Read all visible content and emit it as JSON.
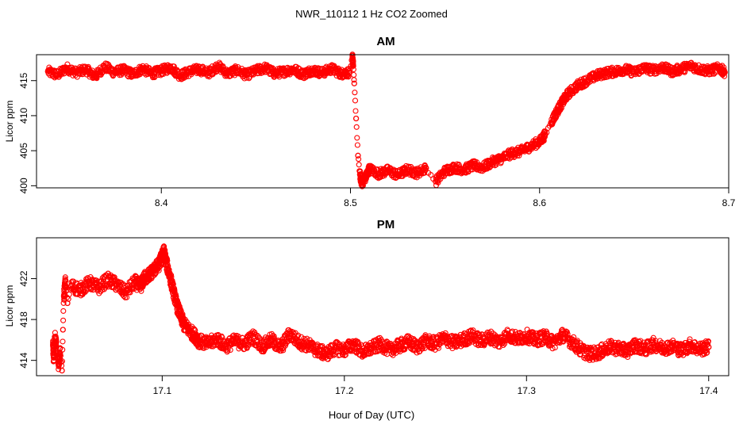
{
  "figure": {
    "suptitle": "NWR_110112  1 Hz CO2 Zoomed",
    "xlabel": "Hour of Day (UTC)"
  },
  "colors": {
    "points": "#ff0000",
    "frame": "#000000",
    "background": "#ffffff"
  },
  "chart_data": [
    {
      "type": "scatter",
      "title": "AM",
      "xlabel": "",
      "ylabel": "Licor ppm",
      "xlim": [
        8.334,
        8.7
      ],
      "ylim": [
        399.7,
        418.7
      ],
      "xticks": [
        8.4,
        8.5,
        8.6,
        8.7
      ],
      "xtick_labels": [
        "8.4",
        "8.5",
        "8.6",
        "8.7"
      ],
      "yticks": [
        400,
        405,
        410,
        415
      ],
      "ytick_labels": [
        "400",
        "405",
        "410",
        "415"
      ],
      "series": [
        {
          "name": "CO2",
          "marker": "open-circle",
          "points": [
            [
              8.34,
              416.3
            ],
            [
              8.345,
              415.8
            ],
            [
              8.35,
              416.8
            ],
            [
              8.355,
              416.1
            ],
            [
              8.36,
              416.6
            ],
            [
              8.365,
              415.6
            ],
            [
              8.37,
              417.0
            ],
            [
              8.375,
              416.2
            ],
            [
              8.38,
              416.5
            ],
            [
              8.385,
              415.9
            ],
            [
              8.39,
              416.7
            ],
            [
              8.395,
              416.0
            ],
            [
              8.4,
              416.4
            ],
            [
              8.405,
              416.9
            ],
            [
              8.41,
              415.7
            ],
            [
              8.415,
              416.3
            ],
            [
              8.42,
              416.6
            ],
            [
              8.425,
              416.1
            ],
            [
              8.43,
              417.1
            ],
            [
              8.435,
              416.0
            ],
            [
              8.44,
              416.5
            ],
            [
              8.445,
              415.8
            ],
            [
              8.45,
              416.4
            ],
            [
              8.455,
              416.8
            ],
            [
              8.46,
              416.0
            ],
            [
              8.465,
              416.3
            ],
            [
              8.47,
              416.6
            ],
            [
              8.475,
              415.9
            ],
            [
              8.48,
              416.5
            ],
            [
              8.485,
              416.1
            ],
            [
              8.49,
              416.7
            ],
            [
              8.495,
              416.0
            ],
            [
              8.4995,
              416.2
            ],
            [
              8.501,
              418.2
            ],
            [
              8.5015,
              417.1
            ],
            [
              8.502,
              414.6
            ],
            [
              8.503,
              409.6
            ],
            [
              8.504,
              404.3
            ],
            [
              8.505,
              401.6
            ],
            [
              8.506,
              400.4
            ],
            [
              8.508,
              401.2
            ],
            [
              8.51,
              402.4
            ],
            [
              8.515,
              401.7
            ],
            [
              8.52,
              402.2
            ],
            [
              8.525,
              401.5
            ],
            [
              8.53,
              402.3
            ],
            [
              8.535,
              401.8
            ],
            [
              8.54,
              402.5
            ],
            [
              8.545,
              400.6
            ],
            [
              8.55,
              402.1
            ],
            [
              8.555,
              402.6
            ],
            [
              8.56,
              402.3
            ],
            [
              8.565,
              402.9
            ],
            [
              8.57,
              402.6
            ],
            [
              8.575,
              403.4
            ],
            [
              8.58,
              403.9
            ],
            [
              8.585,
              404.6
            ],
            [
              8.59,
              404.9
            ],
            [
              8.595,
              405.6
            ],
            [
              8.6,
              406.3
            ],
            [
              8.603,
              407.3
            ],
            [
              8.606,
              409.0
            ],
            [
              8.609,
              410.5
            ],
            [
              8.612,
              411.9
            ],
            [
              8.615,
              413.1
            ],
            [
              8.62,
              414.3
            ],
            [
              8.625,
              415.0
            ],
            [
              8.63,
              415.7
            ],
            [
              8.635,
              416.1
            ],
            [
              8.64,
              416.3
            ],
            [
              8.645,
              416.6
            ],
            [
              8.65,
              416.2
            ],
            [
              8.655,
              416.8
            ],
            [
              8.66,
              416.5
            ],
            [
              8.665,
              416.9
            ],
            [
              8.67,
              416.3
            ],
            [
              8.675,
              416.7
            ],
            [
              8.68,
              417.1
            ],
            [
              8.685,
              416.6
            ],
            [
              8.69,
              416.4
            ],
            [
              8.695,
              416.8
            ],
            [
              8.698,
              416.2
            ]
          ]
        }
      ]
    },
    {
      "type": "scatter",
      "title": "PM",
      "xlabel": "Hour of Day (UTC)",
      "ylabel": "Licor ppm",
      "xlim": [
        17.031,
        17.411
      ],
      "ylim": [
        412.5,
        426.0
      ],
      "xticks": [
        17.1,
        17.2,
        17.3,
        17.4
      ],
      "xtick_labels": [
        "17.1",
        "17.2",
        "17.3",
        "17.4"
      ],
      "yticks": [
        414,
        418,
        422
      ],
      "ytick_labels": [
        "414",
        "418",
        "422"
      ],
      "series": [
        {
          "name": "CO2",
          "marker": "open-circle",
          "points": [
            [
              17.04,
              415.5
            ],
            [
              17.0405,
              414.0
            ],
            [
              17.041,
              416.3
            ],
            [
              17.042,
              415.3
            ],
            [
              17.043,
              413.6
            ],
            [
              17.044,
              414.7
            ],
            [
              17.045,
              413.0
            ],
            [
              17.0455,
              417.0
            ],
            [
              17.046,
              420.3
            ],
            [
              17.047,
              421.8
            ],
            [
              17.048,
              419.6
            ],
            [
              17.05,
              421.3
            ],
            [
              17.055,
              420.9
            ],
            [
              17.06,
              421.6
            ],
            [
              17.065,
              421.1
            ],
            [
              17.07,
              421.9
            ],
            [
              17.075,
              421.4
            ],
            [
              17.08,
              420.6
            ],
            [
              17.085,
              421.7
            ],
            [
              17.088,
              421.2
            ],
            [
              17.09,
              422.0
            ],
            [
              17.093,
              422.4
            ],
            [
              17.095,
              422.8
            ],
            [
              17.098,
              423.3
            ],
            [
              17.1,
              424.2
            ],
            [
              17.101,
              424.6
            ],
            [
              17.102,
              423.7
            ],
            [
              17.104,
              422.4
            ],
            [
              17.106,
              420.9
            ],
            [
              17.108,
              419.4
            ],
            [
              17.11,
              418.4
            ],
            [
              17.112,
              417.5
            ],
            [
              17.115,
              416.9
            ],
            [
              17.118,
              416.4
            ],
            [
              17.12,
              415.9
            ],
            [
              17.125,
              415.6
            ],
            [
              17.13,
              416.1
            ],
            [
              17.135,
              415.4
            ],
            [
              17.14,
              415.9
            ],
            [
              17.145,
              415.6
            ],
            [
              17.15,
              416.3
            ],
            [
              17.155,
              415.4
            ],
            [
              17.16,
              416.0
            ],
            [
              17.165,
              415.2
            ],
            [
              17.17,
              416.6
            ],
            [
              17.175,
              415.8
            ],
            [
              17.18,
              415.5
            ],
            [
              17.185,
              415.0
            ],
            [
              17.19,
              414.6
            ],
            [
              17.195,
              415.2
            ],
            [
              17.2,
              415.0
            ],
            [
              17.205,
              415.6
            ],
            [
              17.21,
              414.8
            ],
            [
              17.215,
              415.2
            ],
            [
              17.22,
              415.6
            ],
            [
              17.225,
              415.0
            ],
            [
              17.23,
              415.4
            ],
            [
              17.235,
              415.8
            ],
            [
              17.24,
              415.3
            ],
            [
              17.245,
              415.9
            ],
            [
              17.25,
              415.6
            ],
            [
              17.255,
              416.2
            ],
            [
              17.26,
              415.7
            ],
            [
              17.265,
              416.0
            ],
            [
              17.27,
              416.4
            ],
            [
              17.275,
              415.9
            ],
            [
              17.28,
              416.3
            ],
            [
              17.285,
              415.8
            ],
            [
              17.29,
              416.5
            ],
            [
              17.295,
              416.1
            ],
            [
              17.3,
              416.4
            ],
            [
              17.305,
              416.0
            ],
            [
              17.31,
              416.3
            ],
            [
              17.315,
              415.7
            ],
            [
              17.32,
              416.5
            ],
            [
              17.325,
              415.8
            ],
            [
              17.33,
              415.0
            ],
            [
              17.335,
              414.6
            ],
            [
              17.34,
              414.8
            ],
            [
              17.345,
              415.3
            ],
            [
              17.35,
              415.2
            ],
            [
              17.355,
              414.9
            ],
            [
              17.36,
              415.5
            ],
            [
              17.365,
              415.1
            ],
            [
              17.37,
              415.6
            ],
            [
              17.375,
              415.2
            ],
            [
              17.38,
              415.4
            ],
            [
              17.385,
              415.0
            ],
            [
              17.39,
              415.5
            ],
            [
              17.395,
              415.1
            ],
            [
              17.4,
              415.3
            ]
          ]
        }
      ]
    }
  ]
}
